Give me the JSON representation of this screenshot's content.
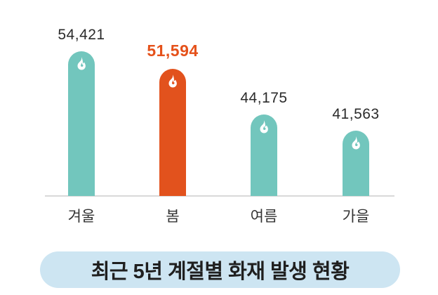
{
  "chart_data": {
    "type": "bar",
    "title": "최근 5년 계절별 화재 발생 현황",
    "categories": [
      "겨울",
      "봄",
      "여름",
      "가을"
    ],
    "values": [
      54421,
      51594,
      44175,
      41563
    ],
    "value_labels": [
      "54,421",
      "51,594",
      "44,175",
      "41,563"
    ],
    "highlight_index": 1,
    "ylim": [
      31000,
      55500
    ],
    "baseline_value": 30980,
    "grid": "off",
    "legend": "none",
    "xlabel": "",
    "ylabel": "",
    "colors": {
      "bar_teal": "#72c6bd",
      "bar_highlight": "#e2521d",
      "highlight_text": "#e5511a",
      "value_text": "#2b2b2b",
      "axis_line": "#d9d9d9",
      "title_pill_bg": "#cde5f2",
      "title_text": "#1f1f1f",
      "flame_icon": "#ffffff"
    }
  },
  "title": {
    "prefix": "최근 5년 계절별 화재 발생 ",
    "bold": "현황"
  }
}
